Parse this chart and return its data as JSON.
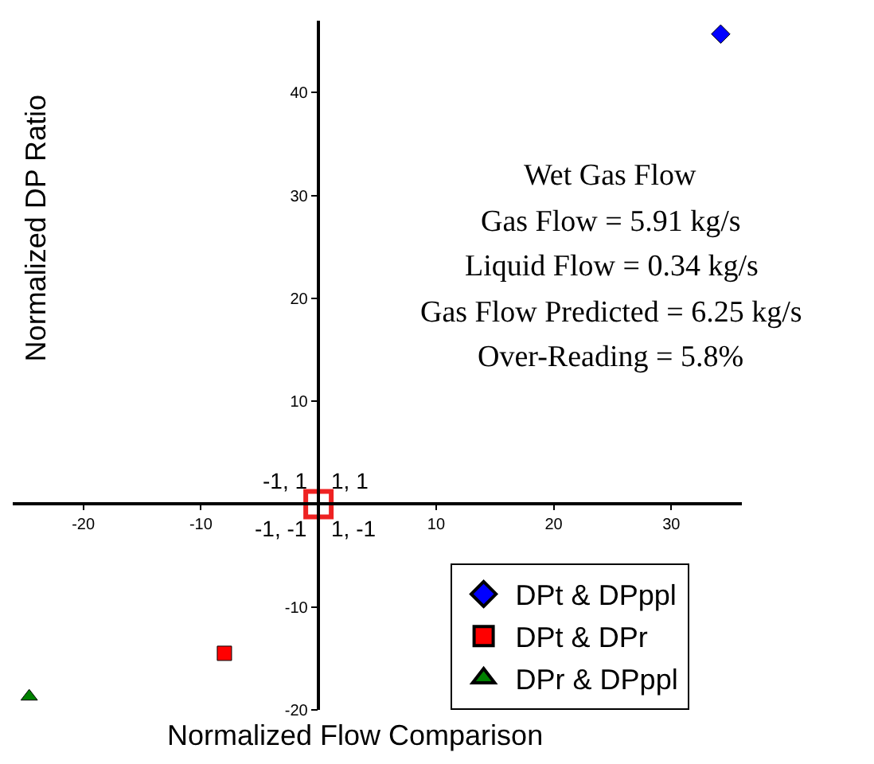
{
  "chart_data": {
    "type": "scatter",
    "xlabel": "Normalized Flow Comparison",
    "ylabel": "Normalized DP Ratio",
    "xlim": [
      -26,
      36
    ],
    "xticks": [
      -20,
      -10,
      10,
      20,
      30
    ],
    "ylim": [
      -20,
      47
    ],
    "yticks": [
      -20,
      -10,
      10,
      20,
      30,
      40
    ],
    "grid": false,
    "legend": "bottom right",
    "series": [
      {
        "name": "DPt & DPppl",
        "color": "#0000ff",
        "marker": "diamond",
        "x": [
          34.2
        ],
        "values": [
          45.7
        ]
      },
      {
        "name": "DPt & DPr",
        "color": "#ff0000",
        "marker": "square",
        "x": [
          -8
        ],
        "values": [
          -14.5
        ]
      },
      {
        "name": "DPr & DPppl",
        "color": "#008000",
        "marker": "triangle",
        "x": [
          -24.6
        ],
        "values": [
          -18.7
        ]
      },
      {
        "color": "#ee2222",
        "marker": "square-open",
        "x": [
          0
        ],
        "values": [
          0
        ]
      }
    ],
    "annotations": [
      "-1, 1",
      "1, 1",
      "-1, -1",
      "1, -1",
      "Wet Gas Flow",
      "Gas Flow = 5.91 kg/s",
      "Liquid Flow = 0.34 kg/s",
      "Gas Flow Predicted = 6.25 kg/s",
      "Over-Reading = 5.8%"
    ]
  }
}
